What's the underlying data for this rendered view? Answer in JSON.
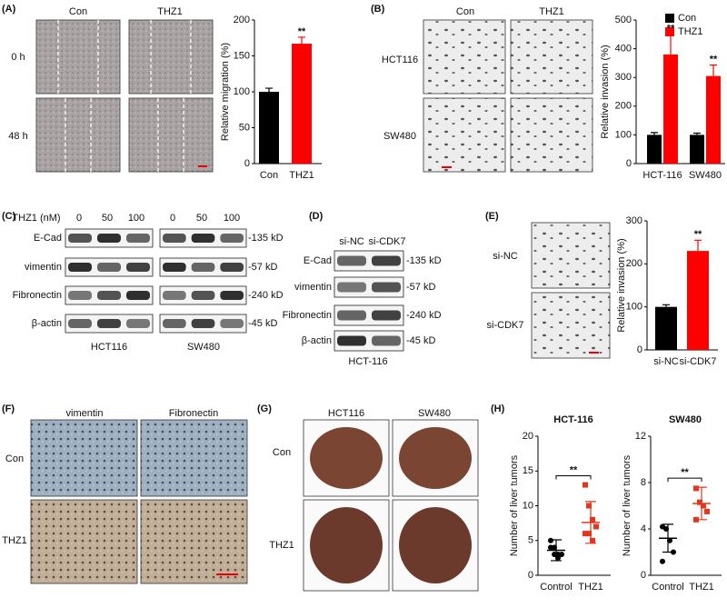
{
  "panels": {
    "A": {
      "label": "(A)",
      "columns": [
        "Con",
        "THZ1"
      ],
      "rows": [
        "0 h",
        "48 h"
      ]
    },
    "B": {
      "label": "(B)",
      "columns": [
        "Con",
        "THZ1"
      ],
      "rows": [
        "HCT116",
        "SW480"
      ]
    },
    "C": {
      "label": "(C)",
      "unit": "THZ1 (nM)",
      "doses": [
        "0",
        "50",
        "100",
        "0",
        "50",
        "100"
      ],
      "proteins": [
        "E-Cad",
        "vimentin",
        "Fibronectin",
        "β-actin"
      ],
      "sizes": [
        "-135 kD",
        "-57 kD",
        "-240 kD",
        "-45 kD"
      ],
      "cells": [
        "HCT116",
        "SW480"
      ]
    },
    "D": {
      "label": "(D)",
      "lanes": [
        "si-NC",
        "si-CDK7"
      ],
      "proteins": [
        "E-Cad",
        "vimentin",
        "Fibronectin",
        "β-actin"
      ],
      "sizes": [
        "-135 kD",
        "-57 kD",
        "-240 kD",
        "-45 kD"
      ],
      "cell": "HCT-116"
    },
    "E": {
      "label": "(E)",
      "rows": [
        "si-NC",
        "si-CDK7"
      ]
    },
    "F": {
      "label": "(F)",
      "columns": [
        "vimentin",
        "Fibronectin"
      ],
      "rows": [
        "Con",
        "THZ1"
      ]
    },
    "G": {
      "label": "(G)",
      "columns": [
        "HCT116",
        "SW480"
      ],
      "rows": [
        "Con",
        "THZ1"
      ]
    },
    "H": {
      "label": "(H)"
    }
  },
  "chart_data": [
    {
      "type": "bar",
      "ylabel": "Relative migration (%)",
      "categories": [
        "Con",
        "THZ1"
      ],
      "values": [
        100,
        167
      ],
      "errors": [
        5,
        9
      ],
      "colors": [
        "#000000",
        "#ff0000"
      ],
      "ylim": [
        0,
        200
      ],
      "yticks": [
        0,
        50,
        100,
        150,
        200
      ],
      "annotations": [
        {
          "text": "**",
          "category": 1
        }
      ]
    },
    {
      "type": "grouped_bar",
      "ylabel": "Relative invasion (%)",
      "categories": [
        "HCT-116",
        "SW480"
      ],
      "series": [
        {
          "name": "Con",
          "color": "#000000",
          "values": [
            100,
            100
          ],
          "errors": [
            8,
            6
          ]
        },
        {
          "name": "THZ1",
          "color": "#ff0000",
          "values": [
            380,
            305
          ],
          "errors": [
            70,
            38
          ]
        }
      ],
      "ylim": [
        0,
        500
      ],
      "yticks": [
        0,
        100,
        200,
        300,
        400,
        500
      ],
      "legend": "upper right",
      "annotations": [
        {
          "text": "**",
          "category": 0,
          "series": 1
        },
        {
          "text": "**",
          "category": 1,
          "series": 1
        }
      ]
    },
    {
      "type": "bar",
      "ylabel": "Relative invasion (%)",
      "categories": [
        "si-NC",
        "si-CDK7"
      ],
      "values": [
        100,
        230
      ],
      "errors": [
        5,
        25
      ],
      "colors": [
        "#000000",
        "#ff0000"
      ],
      "ylim": [
        0,
        300
      ],
      "yticks": [
        0,
        100,
        200,
        300
      ],
      "annotations": [
        {
          "text": "**",
          "category": 1
        }
      ]
    },
    {
      "type": "dot",
      "title": "HCT-116",
      "ylabel": "Number of liver tumors",
      "categories": [
        "Control",
        "THZ1"
      ],
      "groups": [
        {
          "values": [
            5,
            4,
            3,
            3,
            4,
            3,
            2.5
          ],
          "mean": 3.6,
          "sd": 1.5,
          "color": "#000000",
          "marker": "circle"
        },
        {
          "values": [
            13,
            10,
            8,
            7,
            6,
            6,
            5
          ],
          "mean": 7.6,
          "sd": 3,
          "color": "#e8341c",
          "marker": "square"
        }
      ],
      "ylim": [
        0,
        20
      ],
      "yticks": [
        0,
        5,
        10,
        15,
        20
      ],
      "annotation": "**"
    },
    {
      "type": "dot",
      "title": "SW480",
      "ylabel": "Number of liver tumors",
      "categories": [
        "Control",
        "THZ1"
      ],
      "groups": [
        {
          "values": [
            4.2,
            4,
            3,
            2,
            1.2
          ],
          "mean": 3.2,
          "sd": 1.2,
          "color": "#000000",
          "marker": "circle"
        },
        {
          "values": [
            7.5,
            6.3,
            6,
            5.5,
            4.8
          ],
          "mean": 6.2,
          "sd": 1.4,
          "color": "#e8341c",
          "marker": "square"
        }
      ],
      "ylim": [
        0,
        12
      ],
      "yticks": [
        0,
        4,
        8,
        12
      ],
      "annotation": "**"
    }
  ]
}
